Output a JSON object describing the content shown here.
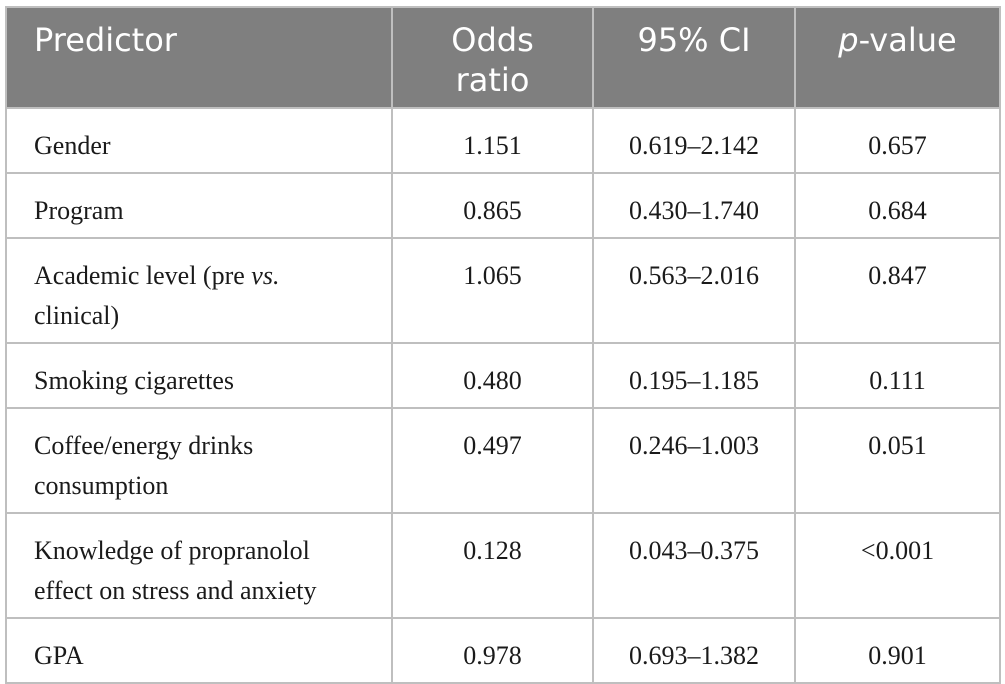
{
  "table": {
    "headers": {
      "predictor": "Predictor",
      "odds_ratio_line1": "Odds",
      "odds_ratio_line2": "ratio",
      "ci": "95% CI",
      "p_italic": "p",
      "p_rest": "-value"
    },
    "rows": [
      {
        "predictor": "Gender",
        "odds_ratio": "1.151",
        "ci": "0.619–2.142",
        "p_value": "0.657"
      },
      {
        "predictor": "Program",
        "odds_ratio": "0.865",
        "ci": "0.430–1.740",
        "p_value": "0.684"
      },
      {
        "predictor_pre": "Academic level (pre ",
        "predictor_italic": "vs.",
        "predictor_line2": "clinical)",
        "odds_ratio": "1.065",
        "ci": "0.563–2.016",
        "p_value": "0.847"
      },
      {
        "predictor": "Smoking cigarettes",
        "odds_ratio": "0.480",
        "ci": "0.195–1.185",
        "p_value": "0.111"
      },
      {
        "predictor_line1": "Coffee/energy drinks",
        "predictor_line2": "consumption",
        "odds_ratio": "0.497",
        "ci": "0.246–1.003",
        "p_value": "0.051"
      },
      {
        "predictor_line1": "Knowledge of propranolol",
        "predictor_line2": "effect on stress and anxiety",
        "odds_ratio": "0.128",
        "ci": "0.043–0.375",
        "p_value": "<0.001"
      },
      {
        "predictor": "GPA",
        "odds_ratio": "0.978",
        "ci": "0.693–1.382",
        "p_value": "0.901"
      }
    ]
  }
}
